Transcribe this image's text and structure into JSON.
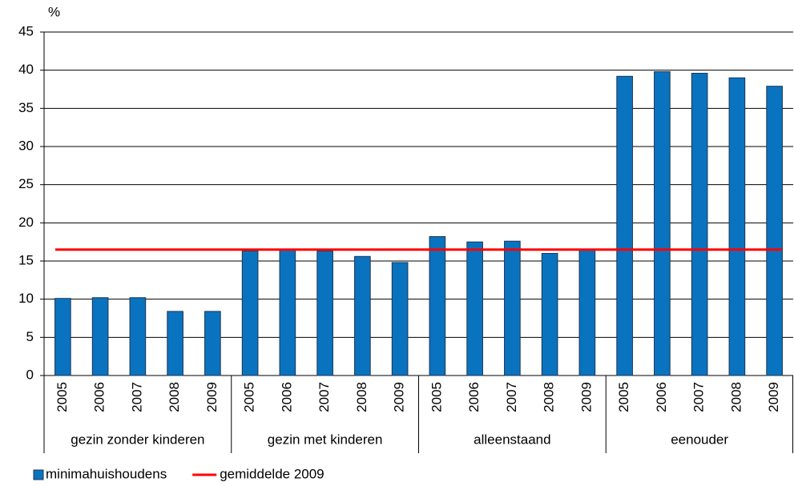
{
  "chart_data": {
    "type": "bar",
    "y_label": "%",
    "groups": [
      {
        "name": "gezin zonder kinderen",
        "categories": [
          "2005",
          "2006",
          "2007",
          "2008",
          "2009"
        ]
      },
      {
        "name": "gezin met kinderen",
        "categories": [
          "2005",
          "2006",
          "2007",
          "2008",
          "2009"
        ]
      },
      {
        "name": "alleenstaand",
        "categories": [
          "2005",
          "2006",
          "2007",
          "2008",
          "2009"
        ]
      },
      {
        "name": "eenouder",
        "categories": [
          "2005",
          "2006",
          "2007",
          "2008",
          "2009"
        ]
      }
    ],
    "series": [
      {
        "name": "minimahuishoudens",
        "type": "bar",
        "color": "#0a73c0",
        "values": [
          10.1,
          10.2,
          10.2,
          8.4,
          8.4,
          16.3,
          16.5,
          16.3,
          15.6,
          14.8,
          18.2,
          17.5,
          17.6,
          16.0,
          16.5,
          39.2,
          39.8,
          39.6,
          39.0,
          37.9
        ]
      },
      {
        "name": "gemiddelde 2009",
        "type": "line",
        "color": "#ff0000",
        "values": [
          16.5
        ]
      }
    ],
    "ylim": [
      0,
      45
    ],
    "yticks": [
      0,
      5,
      10,
      15,
      20,
      25,
      30,
      35,
      40,
      45
    ],
    "grid": true,
    "legend": "bottom-left"
  }
}
